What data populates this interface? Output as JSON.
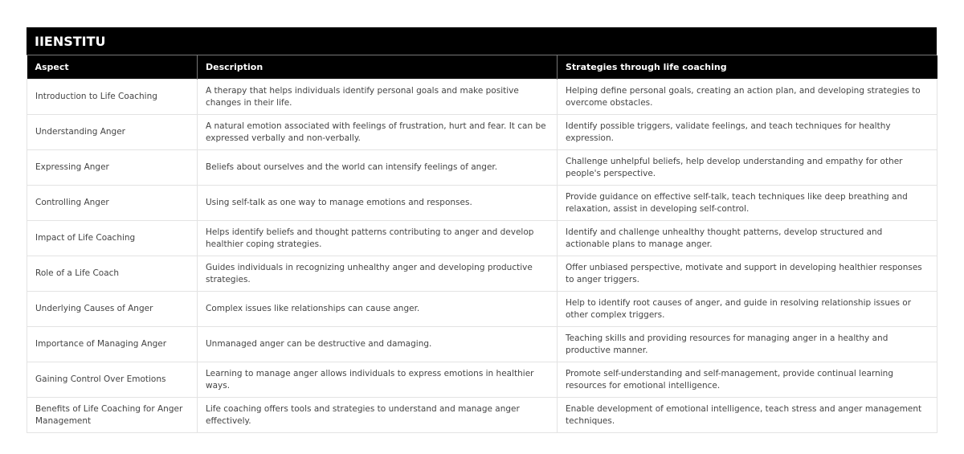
{
  "brand": "IIENSTITU",
  "headers": [
    "Aspect",
    "Description",
    "Strategies through life coaching"
  ],
  "rows": [
    [
      "Introduction to Life Coaching",
      "A therapy that helps individuals identify personal goals and make positive changes in their life.",
      "Helping define personal goals, creating an action plan, and developing strategies to overcome obstacles."
    ],
    [
      "Understanding Anger",
      "A natural emotion associated with feelings of frustration, hurt and fear. It can be expressed verbally and non-verbally.",
      "Identify possible triggers, validate feelings, and teach techniques for healthy expression."
    ],
    [
      "Expressing Anger",
      "Beliefs about ourselves and the world can intensify feelings of anger.",
      "Challenge unhelpful beliefs, help develop understanding and empathy for other people's perspective."
    ],
    [
      "Controlling Anger",
      "Using self-talk as one way to manage emotions and responses.",
      "Provide guidance on effective self-talk, teach techniques like deep breathing and relaxation, assist in developing self-control."
    ],
    [
      "Impact of Life Coaching",
      "Helps identify beliefs and thought patterns contributing to anger and develop healthier coping strategies.",
      "Identify and challenge unhealthy thought patterns, develop structured and actionable plans to manage anger."
    ],
    [
      "Role of a Life Coach",
      "Guides individuals in recognizing unhealthy anger and developing productive strategies.",
      "Offer unbiased perspective, motivate and support in developing healthier responses to anger triggers."
    ],
    [
      "Underlying Causes of Anger",
      "Complex issues like relationships can cause anger.",
      "Help to identify root causes of anger, and guide in resolving relationship issues or other complex triggers."
    ],
    [
      "Importance of Managing Anger",
      "Unmanaged anger can be destructive and damaging.",
      "Teaching skills and providing resources for managing anger in a healthy and productive manner."
    ],
    [
      "Gaining Control Over Emotions",
      "Learning to manage anger allows individuals to express emotions in healthier ways.",
      "Promote self-understanding and self-management, provide continual learning resources for emotional intelligence."
    ],
    [
      "Benefits of Life Coaching for Anger Management",
      "Life coaching offers tools and strategies to understand and manage anger effectively.",
      "Enable development of emotional intelligence, teach stress and anger management techniques."
    ]
  ]
}
